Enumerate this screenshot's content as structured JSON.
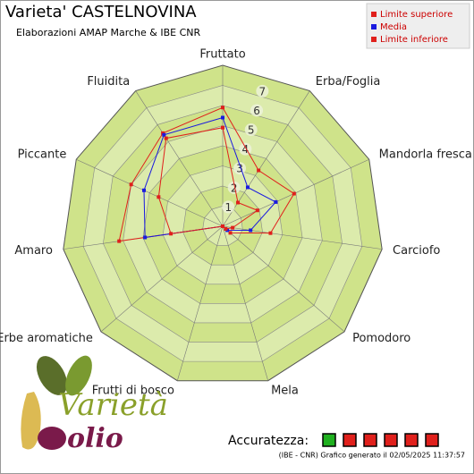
{
  "chart_data": {
    "type": "radar",
    "title": "Varieta' CASTELNOVINA",
    "subtitle": "Elaborazioni AMAP Marche & IBE CNR",
    "categories": [
      "Fruttato",
      "Erba/Foglia",
      "Mandorla fresca",
      "Carciofo",
      "Pomodoro",
      "Mela",
      "Frutti di bosco",
      "Erbe aromatiche",
      "Amaro",
      "Piccante",
      "Fluidita"
    ],
    "series": [
      {
        "name": "Limite superiore",
        "color": "#e0201c",
        "values": [
          5.9,
          3.3,
          3.9,
          2.4,
          0.5,
          0,
          0,
          0,
          5.2,
          5.0,
          5.5
        ]
      },
      {
        "name": "Media",
        "color": "#1a1adf",
        "values": [
          5.4,
          2.3,
          2.9,
          1.4,
          0.3,
          0,
          0,
          0,
          3.9,
          4.3,
          5.4
        ]
      },
      {
        "name": "Limite inferiore",
        "color": "#e0201c",
        "values": [
          4.9,
          1.4,
          1.9,
          0.5,
          0.2,
          0,
          0,
          0,
          2.6,
          3.5,
          5.2
        ]
      }
    ],
    "ylim": [
      0,
      8
    ],
    "yticks": [
      1,
      2,
      3,
      4,
      5,
      6,
      7
    ],
    "grid": true,
    "legend": "top-right",
    "accuracy_label": "Accuratezza:",
    "accuracy_boxes": [
      "#1fb01f",
      "#e0201c",
      "#e0201c",
      "#e0201c",
      "#e0201c",
      "#e0201c"
    ],
    "footer": "(IBE - CNR) Grafico generato il 02/05/2025 11:37:57"
  },
  "logo": {
    "word1": "Varietà",
    "word2": "olio"
  }
}
